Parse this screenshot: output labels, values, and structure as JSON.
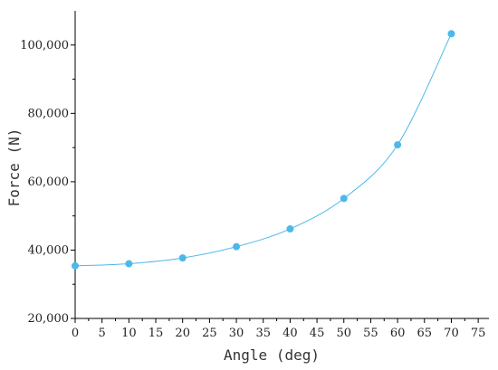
{
  "chart_data": {
    "type": "scatter",
    "xlabel": "Angle (deg)",
    "ylabel": "Force (N)",
    "xlim": [
      0,
      77
    ],
    "ylim": [
      20000,
      110000
    ],
    "x_ticks": [
      0,
      5,
      10,
      15,
      20,
      25,
      30,
      35,
      40,
      45,
      50,
      55,
      60,
      65,
      70,
      75
    ],
    "y_ticks": [
      20000,
      40000,
      60000,
      80000,
      100000
    ],
    "y_tick_labels": [
      "20,000",
      "40,000",
      "60,000",
      "80,000",
      "100,000"
    ],
    "grid": false,
    "series": [
      {
        "x": [
          0,
          10,
          20,
          30,
          40,
          50,
          60,
          70
        ],
        "y": [
          35400,
          36000,
          37700,
          41000,
          46200,
          55100,
          70800,
          103300
        ],
        "color": "#4db8ea",
        "line": "smooth"
      }
    ]
  }
}
